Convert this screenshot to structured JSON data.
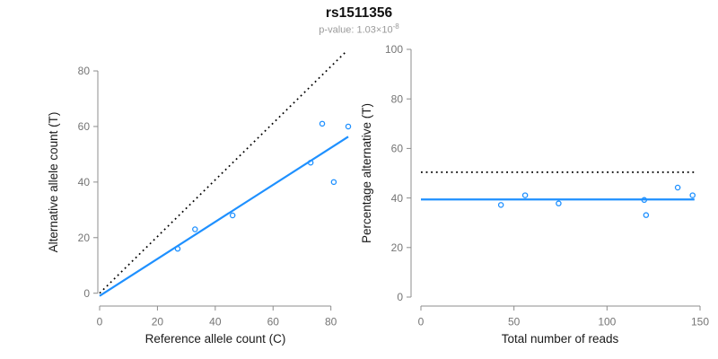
{
  "title": "rs1511356",
  "subtitle": {
    "prefix": "p-value: 1.03×10",
    "exponent": "-8"
  },
  "colors": {
    "accent_blue": "#1E90FF",
    "identity_black": "#000000",
    "axis_gray": "#8C8C8C",
    "tick_label_gray": "#757575",
    "subtitle_gray": "#9A9A9A"
  },
  "chart_data": [
    {
      "type": "scatter",
      "panel": "left",
      "xlabel": "Reference allele count (C)",
      "ylabel": "Alternative allele count (T)",
      "x_ticks": [
        0,
        20,
        40,
        60,
        80
      ],
      "y_ticks": [
        0,
        20,
        40,
        60,
        80
      ],
      "xlim": [
        0,
        86
      ],
      "ylim": [
        0,
        87
      ],
      "grid": false,
      "points": [
        [
          27,
          16
        ],
        [
          33,
          23
        ],
        [
          46,
          28
        ],
        [
          73,
          47
        ],
        [
          81,
          40
        ],
        [
          77,
          61
        ],
        [
          86,
          60
        ]
      ],
      "fit_line": {
        "slope": 0.666,
        "intercept": -0.96,
        "x_from": 0,
        "x_to": 86,
        "style": "solid"
      },
      "identity_line": {
        "slope": 1.02,
        "intercept": 0,
        "x_from": 0,
        "x_to": 85.6,
        "style": "dotted"
      }
    },
    {
      "type": "scatter",
      "panel": "right",
      "xlabel": "Total number of reads",
      "ylabel": "Percentage alternative (T)",
      "x_ticks": [
        0,
        50,
        100,
        150
      ],
      "y_ticks": [
        0,
        20,
        40,
        60,
        80,
        100
      ],
      "xlim": [
        0,
        150
      ],
      "ylim": [
        0,
        100
      ],
      "grid": false,
      "points": [
        [
          43,
          37.2
        ],
        [
          56,
          41.1
        ],
        [
          74,
          37.8
        ],
        [
          120,
          39.2
        ],
        [
          121,
          33.1
        ],
        [
          138,
          44.2
        ],
        [
          146,
          41.1
        ]
      ],
      "fit_line": {
        "y": 39.4,
        "x_from": 0,
        "x_to": 147,
        "style": "solid"
      },
      "identity_line": {
        "y": 50.4,
        "x_from": 0,
        "x_to": 147,
        "style": "dotted"
      }
    }
  ]
}
